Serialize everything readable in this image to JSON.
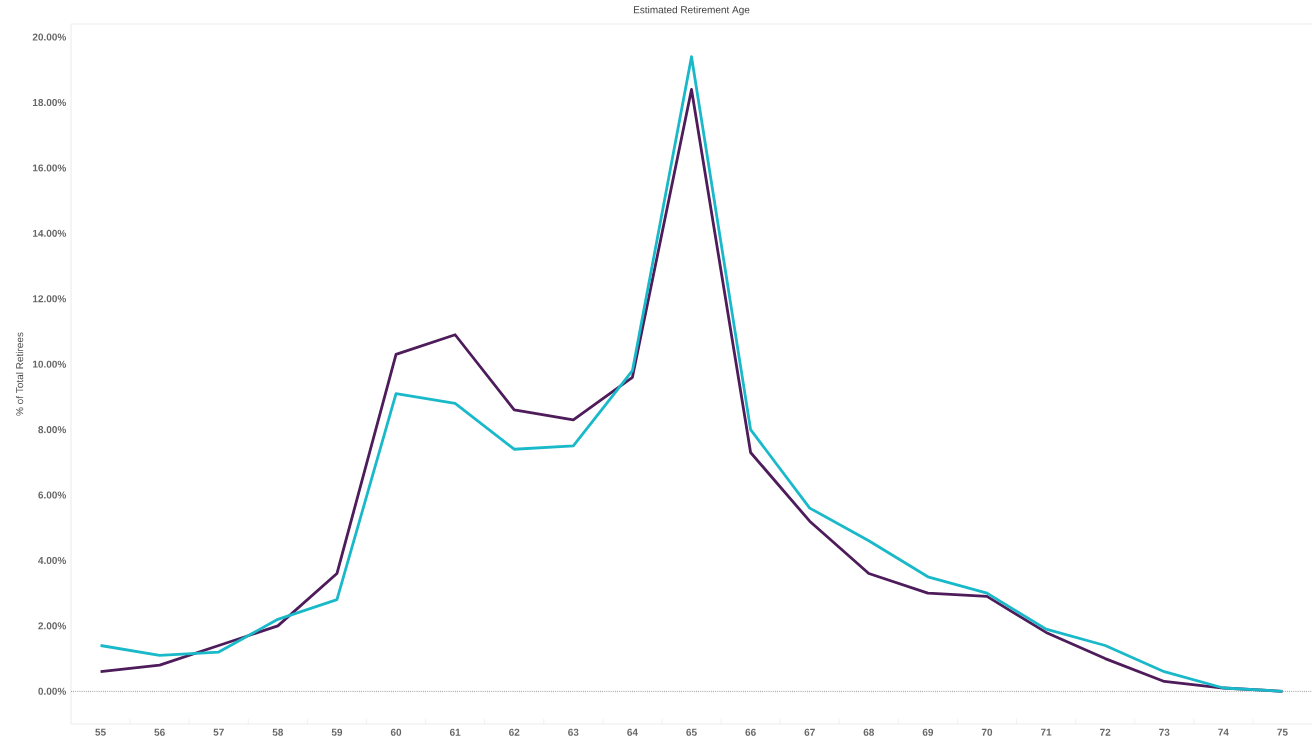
{
  "chart_data": {
    "type": "line",
    "title": "Estimated Retirement Age",
    "ylabel": "% of Total Retirees",
    "categories": [
      "55",
      "56",
      "57",
      "58",
      "59",
      "60",
      "61",
      "62",
      "63",
      "64",
      "65",
      "66",
      "67",
      "68",
      "69",
      "70",
      "71",
      "72",
      "73",
      "74",
      "75"
    ],
    "series": [
      {
        "color": "#4e1c5a",
        "values": [
          0.6,
          0.8,
          1.4,
          2.0,
          3.6,
          10.3,
          10.9,
          8.6,
          8.3,
          9.6,
          18.4,
          7.3,
          5.2,
          3.6,
          3.0,
          2.9,
          1.8,
          1.0,
          0.3,
          0.1,
          0.0
        ]
      },
      {
        "color": "#1ab9c9",
        "values": [
          1.4,
          1.1,
          1.2,
          2.2,
          2.8,
          9.1,
          8.8,
          7.4,
          7.5,
          9.8,
          19.4,
          8.0,
          5.6,
          4.6,
          3.5,
          3.0,
          1.9,
          1.4,
          0.6,
          0.1,
          0.0
        ]
      }
    ],
    "ylim": [
      -1,
      20.4
    ],
    "yticks": [
      {
        "value": 0,
        "label": "0.00%"
      },
      {
        "value": 2,
        "label": "2.00%"
      },
      {
        "value": 4,
        "label": "4.00%"
      },
      {
        "value": 6,
        "label": "6.00%"
      },
      {
        "value": 8,
        "label": "8.00%"
      },
      {
        "value": 10,
        "label": "10.00%"
      },
      {
        "value": 12,
        "label": "12.00%"
      },
      {
        "value": 14,
        "label": "14.00%"
      },
      {
        "value": 16,
        "label": "16.00%"
      },
      {
        "value": 18,
        "label": "18.00%"
      },
      {
        "value": 20,
        "label": "20.00%"
      }
    ],
    "ref_lines": [
      {
        "axis": "y",
        "value": 0,
        "color": "#555555",
        "line_style": "dotted"
      }
    ],
    "grid": false,
    "legend": false,
    "marker": "none",
    "line_style": "solid"
  }
}
